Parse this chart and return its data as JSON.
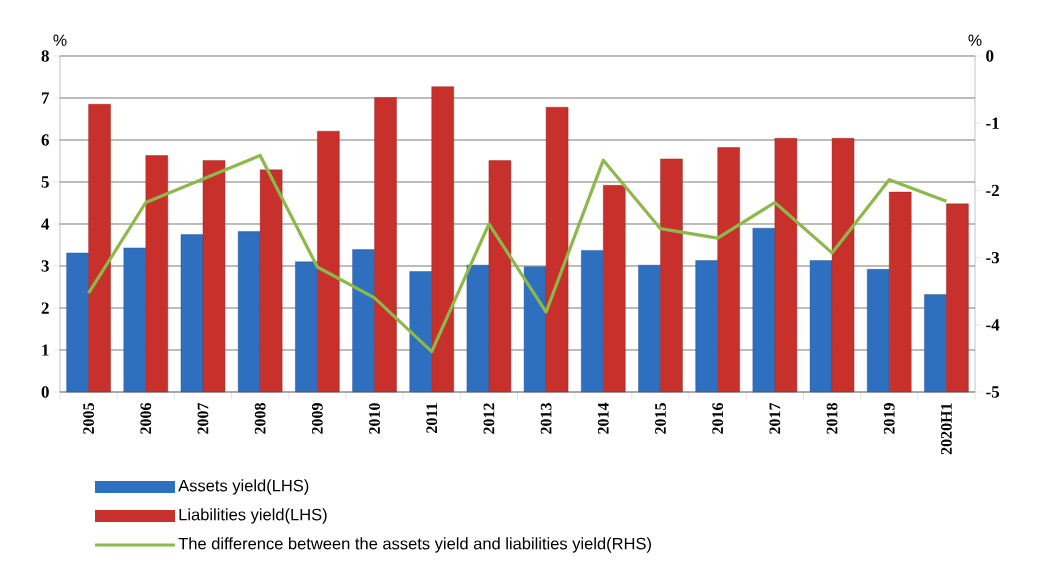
{
  "chart_data": {
    "type": "bar",
    "categories": [
      "2005",
      "2006",
      "2007",
      "2008",
      "2009",
      "2010",
      "2011",
      "2012",
      "2013",
      "2014",
      "2015",
      "2016",
      "2017",
      "2018",
      "2019",
      "2020H1"
    ],
    "series": [
      {
        "name": "Assets yield(LHS)",
        "color": "#2f6fc0",
        "values": [
          3.31,
          3.43,
          3.75,
          3.82,
          3.1,
          3.39,
          2.87,
          3.02,
          2.98,
          3.37,
          3.02,
          3.13,
          3.9,
          3.13,
          2.92,
          2.32
        ]
      },
      {
        "name": "Liabilities yield(LHS)",
        "color": "#c8302c",
        "values": [
          6.85,
          5.63,
          5.51,
          5.29,
          6.21,
          7.01,
          7.27,
          5.51,
          6.78,
          4.92,
          5.55,
          5.82,
          6.04,
          6.04,
          4.76,
          4.48
        ]
      },
      {
        "name": "The difference between the assets yield and liabilities yield(RHS)",
        "type": "line",
        "axis": "y2",
        "color": "#8db84a",
        "values": [
          -3.53,
          -2.18,
          -1.83,
          -1.48,
          -3.14,
          -3.6,
          -4.4,
          -2.5,
          -3.81,
          -1.55,
          -2.57,
          -2.71,
          -2.18,
          -2.93,
          -1.84,
          -2.16
        ]
      }
    ],
    "ylabel": "%",
    "y2label": "%",
    "ylim": [
      0,
      8
    ],
    "yticks": [
      0,
      1,
      2,
      3,
      4,
      5,
      6,
      7,
      8
    ],
    "y2lim": [
      -5,
      0
    ],
    "y2ticks": [
      -5,
      -4,
      -3,
      -2,
      -1,
      0
    ],
    "grid": "y",
    "legend": "bottom left"
  }
}
